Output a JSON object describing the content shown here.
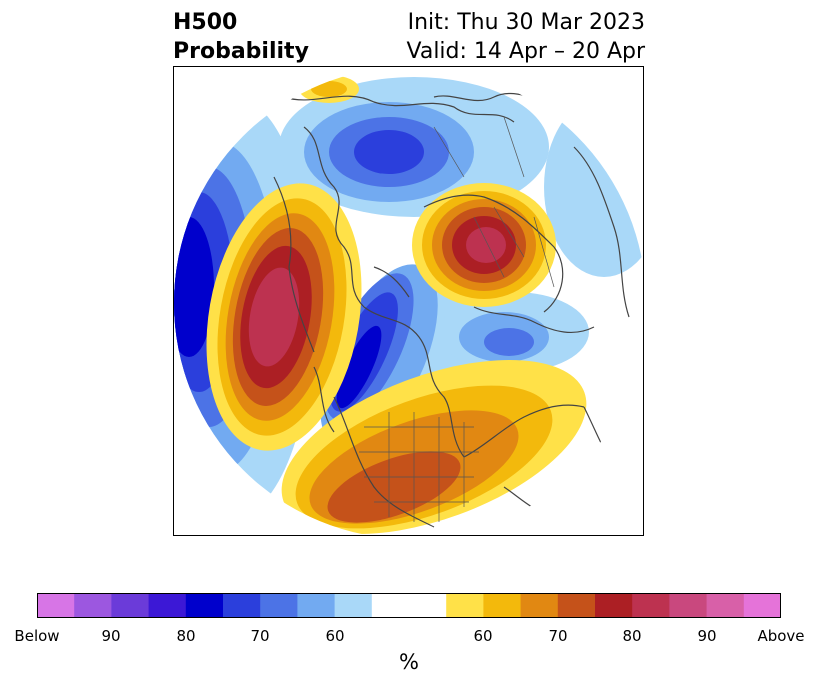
{
  "title": {
    "left_line1": "H500",
    "left_line2": "Probability",
    "right_line1": "Init: Thu 30 Mar 2023",
    "right_line2": "Valid: 14 Apr – 20 Apr"
  },
  "colorbar": {
    "unit": "%",
    "colors": [
      "#d775e6",
      "#9c57e0",
      "#6b3bd9",
      "#3c18d6",
      "#0000cc",
      "#2b3fdc",
      "#4c73e6",
      "#72aaf1",
      "#a9d8f8",
      "#ffffff",
      "#ffffff",
      "#ffe148",
      "#f3b90c",
      "#e18812",
      "#c5521a",
      "#ac1f24",
      "#bd3250",
      "#c9487e",
      "#d860a8",
      "#e573d9"
    ],
    "ticks": [
      "Below",
      "90",
      "80",
      "70",
      "60",
      "60",
      "70",
      "80",
      "90",
      "Above"
    ]
  },
  "map": {
    "palette": {
      "blue_light": "#a9d8f8",
      "blue_mid": "#72aaf1",
      "blue_med2": "#4c73e6",
      "blue_strong": "#2b3fdc",
      "blue_deep": "#0000cc",
      "yellow": "#ffe148",
      "gold": "#f3b90c",
      "orange": "#e18812",
      "rust": "#c5521a",
      "red": "#ac1f24",
      "rose": "#bd3250",
      "outline": "#444444"
    }
  }
}
